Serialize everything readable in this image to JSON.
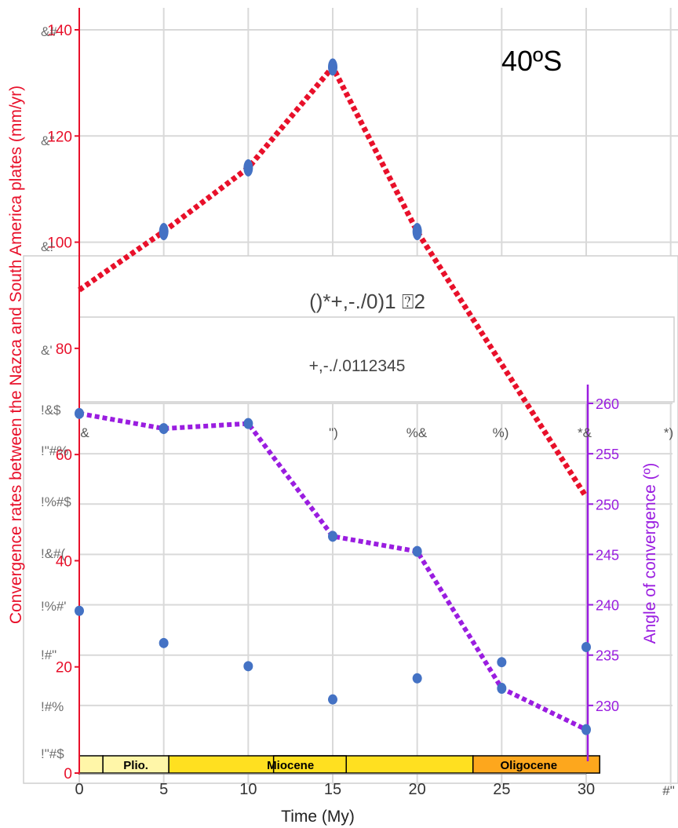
{
  "chart_data": {
    "type": "scatter",
    "annotation": "40ºS",
    "xlabel": "Time (My)",
    "ylabel_left": "Convergence rates between the Nazca and South America plates (mm/yr)",
    "ylabel_right": "Angle of convergence (º)",
    "xlim": [
      0,
      30
    ],
    "ylim_left": [
      0,
      140
    ],
    "ylim_right": [
      225,
      260
    ],
    "x_ticks": [
      "0",
      "5",
      "10",
      "15",
      "20",
      "25",
      "30"
    ],
    "y_ticks_left": [
      "0",
      "20",
      "40",
      "60",
      "80",
      "100",
      "120",
      "140"
    ],
    "y_ticks_right": [
      "230",
      "235",
      "240",
      "245",
      "250",
      "255",
      "260"
    ],
    "grid": true,
    "colors": {
      "rate_line": "#e8102a",
      "angle_line": "#9a1de0",
      "points": "#4472c4",
      "left_axis": "#e8102a",
      "right_axis": "#9a1de0",
      "epoch_fill": "#ffe020",
      "oligocene_fill": "#fda71d",
      "plio_fill": "#fff6a8"
    },
    "series": [
      {
        "axis": "left",
        "style": "dotted-line-with-points",
        "x": [
          0,
          5,
          10,
          15,
          20,
          30
        ],
        "y": [
          91,
          102,
          114,
          133,
          102,
          52
        ]
      },
      {
        "axis": "right",
        "style": "dotted-line-with-points",
        "x": [
          0,
          5,
          10,
          15,
          20,
          25,
          30
        ],
        "y": [
          259,
          257.5,
          258,
          246.8,
          245.3,
          231.7,
          227.6
        ]
      },
      {
        "axis": "right",
        "style": "points",
        "x": [
          0,
          5,
          10,
          15,
          20,
          25,
          30
        ],
        "y": [
          239.4,
          236.2,
          233.9,
          230.6,
          232.7,
          234.3,
          235.8
        ]
      }
    ],
    "epochs": [
      {
        "name": "",
        "start": 0,
        "end": 1.4
      },
      {
        "name": "Plio.",
        "start": 1.4,
        "end": 5.3
      },
      {
        "name": "Miocene",
        "start": 5.3,
        "end": 23.3
      },
      {
        "name": "Oligocene",
        "start": 23.3,
        "end": 30.8
      }
    ],
    "overlay_glitch_text": {
      "top_ticks": [
        "&#",
        "&\"",
        "&!",
        "&'",
        "!&$",
        "!\"#%",
        "!%#$",
        "!&#(",
        "!%#'",
        "!#\"",
        "!#%",
        "!\"#$"
      ],
      "title_line1": "()*+,-./0)1 ⍰2",
      "title_line2": "+,-./.0112345",
      "axis_ticks": [
        "&",
        "\")",
        "%&",
        "%)",
        "*&",
        "*)",
        "#\""
      ]
    }
  }
}
